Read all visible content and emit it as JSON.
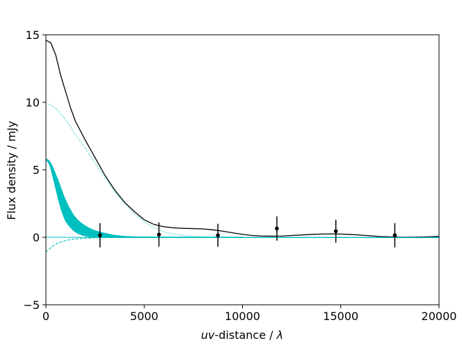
{
  "chart_data": {
    "type": "line",
    "title": "",
    "xlabel": {
      "italic_part": "uv",
      "mid_part": "-distance / ",
      "italic_symbol": "λ"
    },
    "ylabel": "Flux density / mJy",
    "xlim": [
      0,
      20000
    ],
    "ylim": [
      -5,
      15
    ],
    "x_ticks": [
      0,
      5000,
      10000,
      15000,
      20000
    ],
    "x_tick_labels": [
      "0",
      "5000",
      "10000",
      "15000",
      "20000"
    ],
    "y_ticks": [
      -5,
      0,
      5,
      10,
      15
    ],
    "y_tick_labels": [
      "−5",
      "0",
      "5",
      "10",
      "15"
    ],
    "grid": false,
    "legend": "none",
    "colors": {
      "total": "#000000",
      "component": "#00bfbf",
      "points": "#000000"
    },
    "series": [
      {
        "style": "solid",
        "color": "#000000",
        "x": [
          0,
          250,
          500,
          750,
          1000,
          1250,
          1500,
          2000,
          2500,
          3000,
          3500,
          4000,
          4500,
          5000,
          5500,
          6000,
          6500,
          7000,
          7500,
          8000,
          8500,
          9000,
          9500,
          10000,
          10500,
          11000,
          11500,
          12000,
          12500,
          13000,
          13500,
          14000,
          14500,
          15000,
          15500,
          16000,
          16500,
          17000,
          17500,
          18000,
          18500,
          19000,
          19500,
          20000
        ],
        "y": [
          14.6,
          14.4,
          13.5,
          12.0,
          10.8,
          9.6,
          8.6,
          7.2,
          5.9,
          4.6,
          3.5,
          2.6,
          1.9,
          1.3,
          0.95,
          0.78,
          0.7,
          0.66,
          0.64,
          0.62,
          0.55,
          0.45,
          0.33,
          0.22,
          0.13,
          0.09,
          0.08,
          0.09,
          0.13,
          0.17,
          0.21,
          0.24,
          0.25,
          0.24,
          0.21,
          0.16,
          0.11,
          0.06,
          0.03,
          0.01,
          0.01,
          0.02,
          0.04,
          0.07
        ]
      },
      {
        "style": "dotted",
        "color": "#00bfbf",
        "x": [
          0,
          250,
          500,
          750,
          1000,
          1250,
          1500,
          2000,
          2500,
          3000,
          3500,
          4000,
          4500,
          5000,
          5500,
          6000,
          7000,
          8000,
          10000,
          12000,
          15000,
          20000
        ],
        "y": [
          9.9,
          9.8,
          9.55,
          9.15,
          8.7,
          8.2,
          7.6,
          6.6,
          5.5,
          4.4,
          3.4,
          2.5,
          1.75,
          1.15,
          0.7,
          0.4,
          0.12,
          0.03,
          0.0,
          0.0,
          0.0,
          0.0
        ]
      },
      {
        "style": "dashed",
        "color": "#00bfbf",
        "x": [
          0,
          150,
          300,
          500,
          750,
          1000,
          1250,
          1500,
          2000,
          2500,
          3000,
          4000,
          5000,
          7000,
          10000,
          15000,
          20000
        ],
        "y": [
          -1.1,
          -0.9,
          -0.7,
          -0.5,
          -0.35,
          -0.24,
          -0.17,
          -0.12,
          -0.07,
          -0.04,
          -0.02,
          -0.01,
          0.0,
          0.0,
          0.0,
          0.0,
          0.0
        ]
      },
      {
        "style": "solid",
        "color": "#00bfbf",
        "x": [
          0,
          1000,
          2000,
          3000,
          4000,
          6000,
          10000,
          15000,
          20000
        ],
        "y": [
          0.0,
          0.0,
          -0.01,
          -0.01,
          -0.01,
          -0.01,
          -0.02,
          -0.02,
          -0.03
        ]
      }
    ],
    "band": {
      "color": "#00bfbf",
      "x": [
        0,
        100,
        200,
        300,
        400,
        500,
        600,
        700,
        800,
        900,
        1000,
        1200,
        1400,
        1600,
        1800,
        2000,
        2200,
        2400,
        2600,
        2800,
        3000,
        3200,
        3500,
        4000,
        4500,
        5000,
        6000,
        8000,
        10000
      ],
      "upper": [
        5.8,
        5.75,
        5.6,
        5.35,
        5.0,
        4.65,
        4.3,
        3.9,
        3.5,
        3.1,
        2.75,
        2.15,
        1.65,
        1.3,
        1.05,
        0.85,
        0.68,
        0.55,
        0.45,
        0.37,
        0.3,
        0.23,
        0.15,
        0.07,
        0.04,
        0.03,
        0.02,
        0.01,
        0.01
      ],
      "lower": [
        5.7,
        5.6,
        5.3,
        4.8,
        4.2,
        3.6,
        3.0,
        2.45,
        1.95,
        1.55,
        1.2,
        0.8,
        0.5,
        0.3,
        0.18,
        0.1,
        0.05,
        0.03,
        0.01,
        0.0,
        -0.01,
        -0.02,
        -0.02,
        -0.02,
        -0.02,
        -0.02,
        -0.02,
        -0.02,
        -0.02
      ]
    },
    "points": {
      "x": [
        2750,
        5750,
        8750,
        11750,
        14750,
        17750
      ],
      "y": [
        0.15,
        0.2,
        0.15,
        0.65,
        0.45,
        0.15
      ],
      "yerr": [
        0.9,
        0.9,
        0.85,
        0.9,
        0.85,
        0.9
      ]
    }
  }
}
